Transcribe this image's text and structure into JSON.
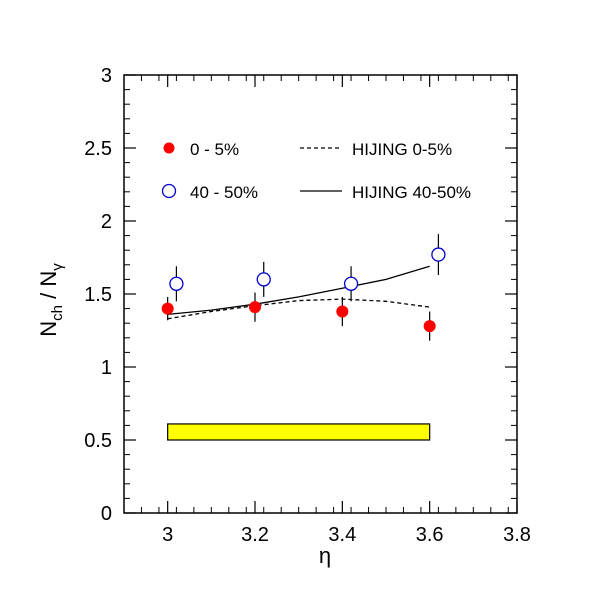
{
  "chart_data": {
    "type": "scatter",
    "title": "",
    "xlabel": "η",
    "ylabel_main": "N",
    "ylabel_sub1": "ch",
    "ylabel_sep": " / N",
    "ylabel_sub2": "γ",
    "xlim": [
      2.9,
      3.8
    ],
    "ylim": [
      0,
      3
    ],
    "xticks": [
      "3",
      "3.2",
      "3.4",
      "3.6",
      "3.8"
    ],
    "yticks": [
      "0",
      "0.5",
      "1",
      "1.5",
      "2",
      "2.5",
      "3"
    ],
    "xtick_values": [
      3.0,
      3.2,
      3.4,
      3.6,
      3.8
    ],
    "ytick_values": [
      0,
      0.5,
      1,
      1.5,
      2,
      2.5,
      3
    ],
    "grid": false,
    "legend_position": "top",
    "series": [
      {
        "name": "0 - 5%",
        "marker": "filled-circle",
        "color": "#ff0000",
        "x": [
          3.0,
          3.2,
          3.4,
          3.6
        ],
        "y": [
          1.4,
          1.41,
          1.38,
          1.28
        ],
        "yerr": [
          0.08,
          0.1,
          0.1,
          0.1
        ]
      },
      {
        "name": "40 - 50%",
        "marker": "open-circle",
        "color": "#0000cc",
        "x": [
          3.02,
          3.22,
          3.42,
          3.62
        ],
        "y": [
          1.57,
          1.6,
          1.57,
          1.77
        ],
        "yerr": [
          0.12,
          0.12,
          0.12,
          0.14
        ]
      }
    ],
    "curves": [
      {
        "name": "HIJING 0-5%",
        "style": "dashed",
        "x": [
          3.0,
          3.1,
          3.2,
          3.3,
          3.4,
          3.5,
          3.6
        ],
        "y": [
          1.33,
          1.38,
          1.42,
          1.455,
          1.465,
          1.45,
          1.41
        ]
      },
      {
        "name": "HIJING 40-50%",
        "style": "solid",
        "x": [
          3.0,
          3.1,
          3.2,
          3.3,
          3.4,
          3.5,
          3.6
        ],
        "y": [
          1.36,
          1.39,
          1.43,
          1.48,
          1.54,
          1.6,
          1.69
        ]
      }
    ],
    "systematic_band": {
      "x0": 3.0,
      "x1": 3.6,
      "y0": 0.5,
      "y1": 0.61,
      "color": "#ffff00"
    }
  }
}
